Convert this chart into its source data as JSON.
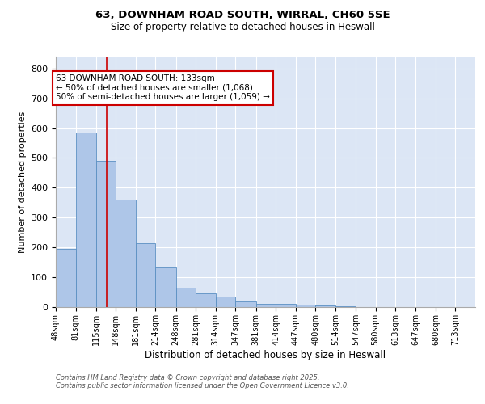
{
  "title1": "63, DOWNHAM ROAD SOUTH, WIRRAL, CH60 5SE",
  "title2": "Size of property relative to detached houses in Heswall",
  "xlabel": "Distribution of detached houses by size in Heswall",
  "ylabel": "Number of detached properties",
  "bin_labels": [
    "48sqm",
    "81sqm",
    "115sqm",
    "148sqm",
    "181sqm",
    "214sqm",
    "248sqm",
    "281sqm",
    "314sqm",
    "347sqm",
    "381sqm",
    "414sqm",
    "447sqm",
    "480sqm",
    "514sqm",
    "547sqm",
    "580sqm",
    "613sqm",
    "647sqm",
    "680sqm",
    "713sqm"
  ],
  "bar_heights": [
    195,
    585,
    490,
    360,
    215,
    133,
    65,
    47,
    35,
    18,
    12,
    12,
    8,
    5,
    2,
    0,
    0,
    0,
    0,
    0,
    0
  ],
  "bar_color": "#aec6e8",
  "bar_edge_color": "#5a8fc2",
  "red_line_x": 133,
  "bin_edges": [
    48,
    81,
    115,
    148,
    181,
    214,
    248,
    281,
    314,
    347,
    381,
    414,
    447,
    480,
    514,
    547,
    580,
    613,
    647,
    680,
    713,
    746
  ],
  "annotation_text": "63 DOWNHAM ROAD SOUTH: 133sqm\n← 50% of detached houses are smaller (1,068)\n50% of semi-detached houses are larger (1,059) →",
  "annotation_box_color": "#ffffff",
  "annotation_box_edge": "#cc0000",
  "footer1": "Contains HM Land Registry data © Crown copyright and database right 2025.",
  "footer2": "Contains public sector information licensed under the Open Government Licence v3.0.",
  "ylim": [
    0,
    840
  ],
  "background_color": "#dce6f5",
  "plot_background": "#ffffff",
  "grid_color": "#ffffff",
  "spine_color": "#aaaaaa"
}
